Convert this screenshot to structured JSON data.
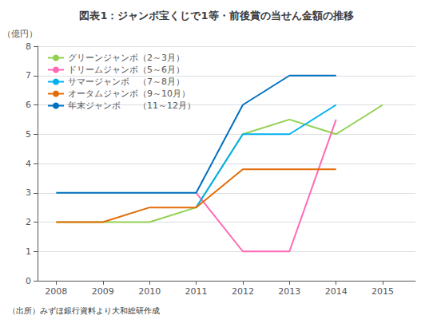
{
  "chart_data": {
    "type": "line",
    "title": "図表1：ジャンボ宝くじで1等・前後賞の当せん金額の推移",
    "ylabel": "（億円）",
    "annotations": [
      "（出所）みずほ銀行資料より大和総研作成"
    ],
    "x": [
      2008,
      2009,
      2010,
      2011,
      2012,
      2013,
      2014,
      2015
    ],
    "series": [
      {
        "name": "グリーンジャンボ（2～3月）",
        "color": "#92d050",
        "values": [
          2.0,
          2.0,
          2.0,
          2.5,
          5.0,
          5.5,
          5.0,
          6.0
        ]
      },
      {
        "name": "ドリームジャンボ（5～6月）",
        "color": "#ff69b4",
        "values": [
          null,
          null,
          null,
          3.0,
          1.0,
          1.0,
          5.5,
          null
        ]
      },
      {
        "name": "サマージャンボ　（7～8月）",
        "color": "#00b0f0",
        "values": [
          null,
          null,
          null,
          2.5,
          5.0,
          5.0,
          6.0,
          null
        ]
      },
      {
        "name": "オータムジャンボ（9～10月）",
        "color": "#e36c09",
        "values": [
          2.0,
          2.0,
          2.5,
          2.5,
          3.8,
          3.8,
          3.8,
          null
        ]
      },
      {
        "name": "年末ジャンボ　　（11～12月）",
        "color": "#0070c0",
        "values": [
          3.0,
          3.0,
          3.0,
          3.0,
          6.0,
          7.0,
          7.0,
          null
        ]
      }
    ],
    "xlim": [
      2007.6,
      2015.7
    ],
    "xticks": [
      2008,
      2009,
      2010,
      2011,
      2012,
      2013,
      2014,
      2015
    ],
    "ylim": [
      0,
      8
    ],
    "yticks": [
      0,
      1,
      2,
      3,
      4,
      5,
      6,
      7,
      8
    ],
    "grid": true,
    "legend": "upper left"
  }
}
